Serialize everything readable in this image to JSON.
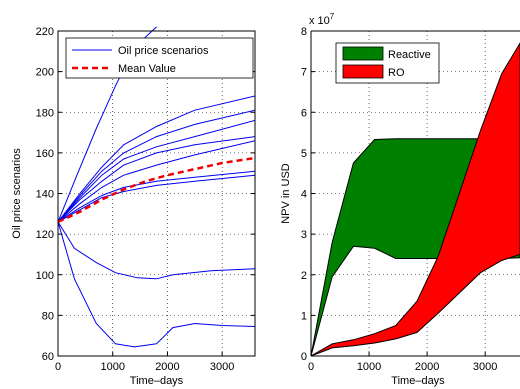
{
  "chart_data": [
    {
      "type": "line",
      "xlabel": "Time–days",
      "ylabel": "Oil price scenarios",
      "xlim": [
        0,
        3600
      ],
      "ylim": [
        60,
        220
      ],
      "xticks": [
        0,
        1000,
        2000,
        3000
      ],
      "yticks": [
        60,
        80,
        100,
        120,
        140,
        160,
        180,
        200,
        220
      ],
      "grid": true,
      "legend": "top-right",
      "series": [
        {
          "name": "Oil price scenarios",
          "color": "#0000ee",
          "style": "solid",
          "lines": [
            [
              [
                0,
                126
              ],
              [
                330,
                148
              ],
              [
                700,
                172
              ],
              [
                1050,
                193
              ],
              [
                1400,
                212
              ],
              [
                1800,
                222
              ]
            ],
            [
              [
                0,
                126
              ],
              [
                400,
                140
              ],
              [
                800,
                153
              ],
              [
                1200,
                164
              ],
              [
                1800,
                173
              ],
              [
                2500,
                181
              ],
              [
                3600,
                188
              ]
            ],
            [
              [
                0,
                126
              ],
              [
                400,
                139
              ],
              [
                800,
                151
              ],
              [
                1200,
                160
              ],
              [
                1800,
                168
              ],
              [
                2500,
                174
              ],
              [
                3600,
                181
              ]
            ],
            [
              [
                0,
                126
              ],
              [
                400,
                138
              ],
              [
                800,
                149
              ],
              [
                1200,
                157
              ],
              [
                1800,
                163
              ],
              [
                2500,
                168
              ],
              [
                3600,
                176
              ]
            ],
            [
              [
                0,
                126
              ],
              [
                400,
                137
              ],
              [
                800,
                146
              ],
              [
                1200,
                154
              ],
              [
                1800,
                160
              ],
              [
                2500,
                164
              ],
              [
                3600,
                168
              ]
            ],
            [
              [
                0,
                126
              ],
              [
                400,
                135
              ],
              [
                800,
                143
              ],
              [
                1200,
                149
              ],
              [
                1800,
                154
              ],
              [
                2500,
                159
              ],
              [
                3600,
                166
              ]
            ],
            [
              [
                0,
                126
              ],
              [
                400,
                133
              ],
              [
                800,
                139
              ],
              [
                1200,
                143
              ],
              [
                1800,
                146
              ],
              [
                2500,
                148
              ],
              [
                3600,
                151
              ]
            ],
            [
              [
                0,
                126
              ],
              [
                400,
                132
              ],
              [
                800,
                138
              ],
              [
                1200,
                141
              ],
              [
                1800,
                144
              ],
              [
                2500,
                146
              ],
              [
                3600,
                149
              ]
            ],
            [
              [
                0,
                126
              ],
              [
                300,
                113
              ],
              [
                700,
                106
              ],
              [
                1050,
                101
              ],
              [
                1450,
                98.5
              ],
              [
                1800,
                98
              ],
              [
                2100,
                100
              ],
              [
                2800,
                102
              ],
              [
                3600,
                103
              ]
            ],
            [
              [
                0,
                126
              ],
              [
                300,
                98
              ],
              [
                700,
                76
              ],
              [
                1050,
                66
              ],
              [
                1400,
                64.5
              ],
              [
                1800,
                66
              ],
              [
                2100,
                74
              ],
              [
                2500,
                76
              ],
              [
                3000,
                75
              ],
              [
                3600,
                74.5
              ]
            ]
          ]
        },
        {
          "name": "Mean Value",
          "color": "#ee0000",
          "style": "dashed",
          "lines": [
            [
              [
                0,
                126
              ],
              [
                400,
                131
              ],
              [
                800,
                137
              ],
              [
                1200,
                142
              ],
              [
                1600,
                146
              ],
              [
                2000,
                149
              ],
              [
                2500,
                152
              ],
              [
                3000,
                155
              ],
              [
                3600,
                157.5
              ]
            ]
          ]
        }
      ]
    },
    {
      "type": "area",
      "xlabel": "Time–days",
      "ylabel": "NPV in USD",
      "multiplier": "x 10",
      "multiplier_exp": "7",
      "xlim": [
        0,
        3600
      ],
      "ylim": [
        0,
        8
      ],
      "xticks": [
        0,
        1000,
        2000,
        3000
      ],
      "yticks": [
        0,
        1,
        2,
        3,
        4,
        5,
        6,
        7,
        8
      ],
      "grid": true,
      "legend": "top-left",
      "series": [
        {
          "name": "Reactive",
          "color": "#008000",
          "upper": [
            [
              0,
              0
            ],
            [
              365,
              2.8
            ],
            [
              730,
              4.75
            ],
            [
              1095,
              5.33
            ],
            [
              1460,
              5.35
            ],
            [
              1825,
              5.35
            ],
            [
              2190,
              5.35
            ],
            [
              2555,
              5.35
            ],
            [
              2920,
              5.35
            ],
            [
              3285,
              5.35
            ],
            [
              3600,
              5.35
            ]
          ],
          "lower": [
            [
              0,
              0
            ],
            [
              365,
              1.95
            ],
            [
              730,
              2.7
            ],
            [
              1095,
              2.65
            ],
            [
              1460,
              2.4
            ],
            [
              1825,
              2.4
            ],
            [
              2190,
              2.4
            ],
            [
              2555,
              2.4
            ],
            [
              2920,
              2.4
            ],
            [
              3285,
              2.4
            ],
            [
              3600,
              2.42
            ]
          ]
        },
        {
          "name": "RO",
          "color": "#ff0000",
          "upper": [
            [
              0,
              0
            ],
            [
              365,
              0.3
            ],
            [
              730,
              0.4
            ],
            [
              1095,
              0.55
            ],
            [
              1460,
              0.75
            ],
            [
              1825,
              1.35
            ],
            [
              2190,
              2.45
            ],
            [
              2555,
              4.0
            ],
            [
              2920,
              5.55
            ],
            [
              3285,
              6.95
            ],
            [
              3600,
              7.7
            ]
          ],
          "lower": [
            [
              0,
              0
            ],
            [
              365,
              0.2
            ],
            [
              730,
              0.25
            ],
            [
              1095,
              0.32
            ],
            [
              1460,
              0.42
            ],
            [
              1825,
              0.58
            ],
            [
              2190,
              1.05
            ],
            [
              2555,
              1.55
            ],
            [
              2920,
              2.05
            ],
            [
              3285,
              2.35
            ],
            [
              3600,
              2.5
            ]
          ]
        }
      ]
    }
  ]
}
